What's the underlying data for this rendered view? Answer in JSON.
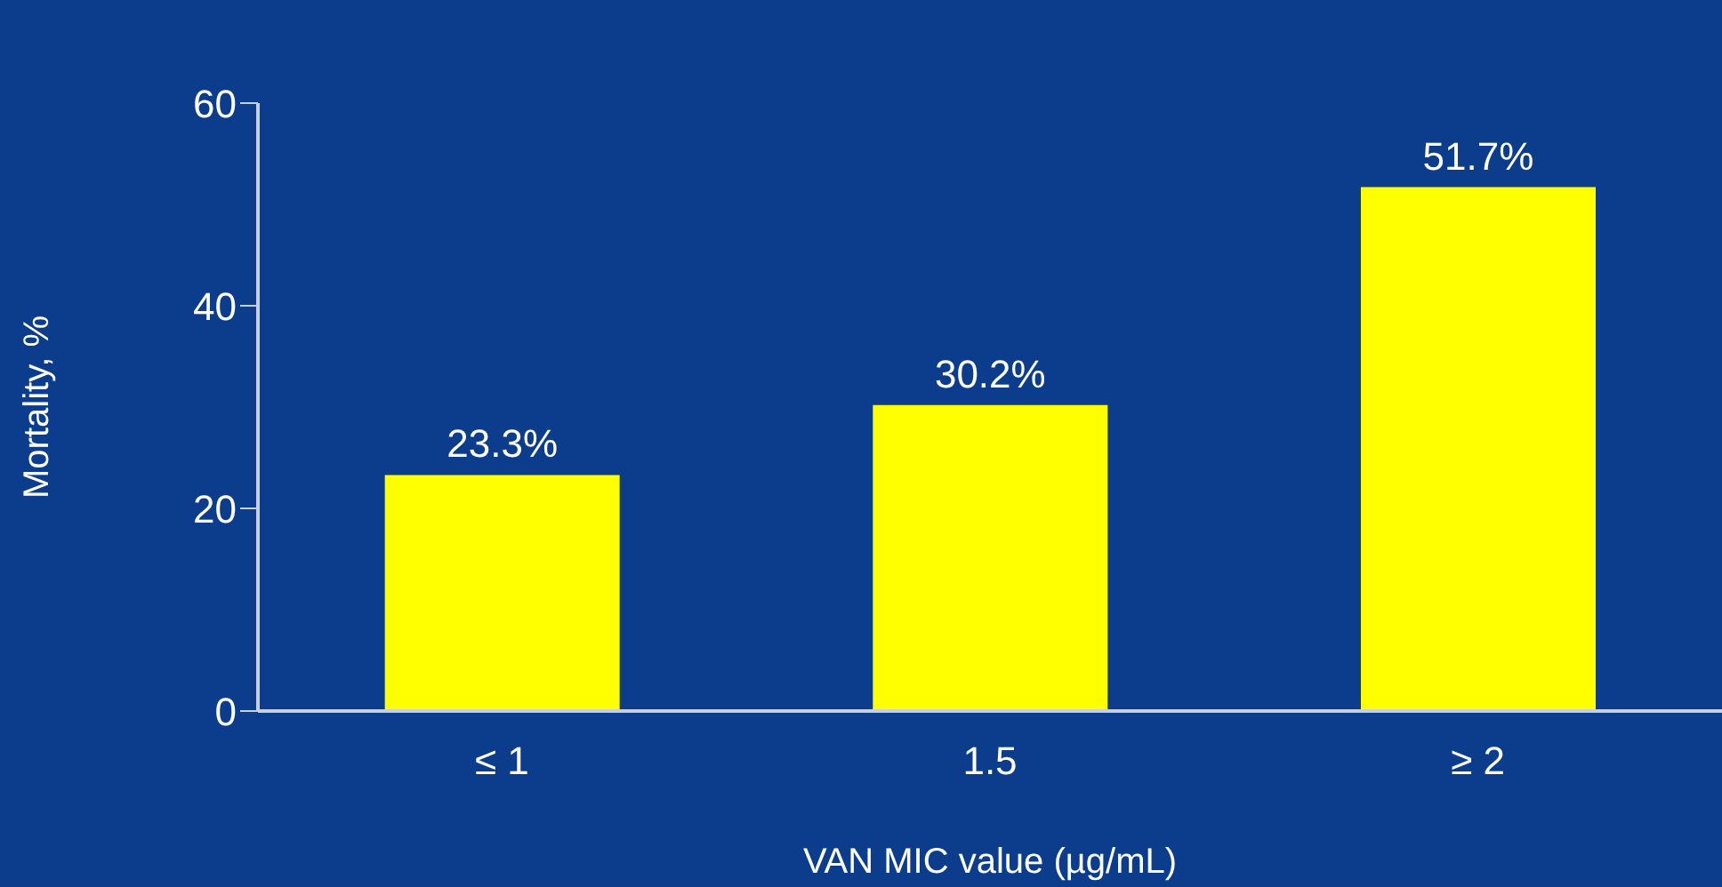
{
  "chart_data": {
    "type": "bar",
    "ylabel": "Mortality, %",
    "xlabel": "VAN MIC value (µg/mL)",
    "categories": [
      "≤ 1",
      "1.5",
      "≥ 2"
    ],
    "series": [
      {
        "color": "#ffff00",
        "values": [
          23.3,
          30.2,
          51.7
        ],
        "value_labels": [
          "23.3%",
          "30.2%",
          "51.7%"
        ]
      }
    ],
    "ylim": [
      0,
      60
    ],
    "yticks": [
      0,
      20,
      40,
      60
    ],
    "grid": false,
    "legend": false
  }
}
